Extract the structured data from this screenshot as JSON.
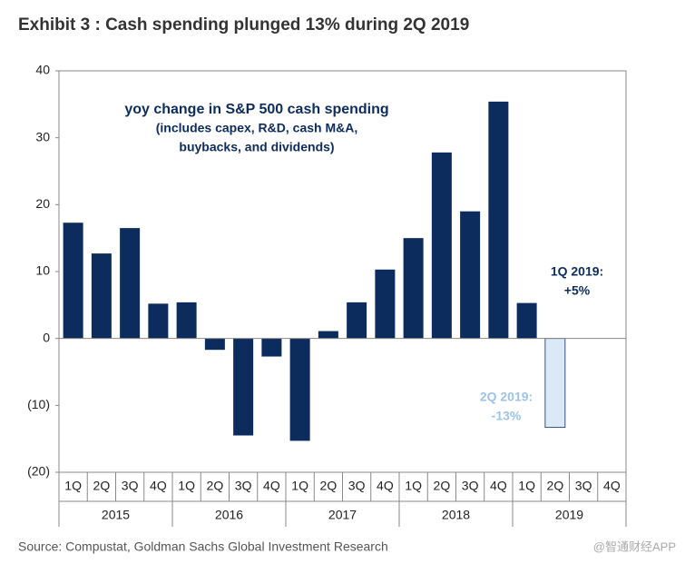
{
  "chart_data": {
    "type": "bar",
    "title": "Exhibit 3 : Cash spending plunged 13% during 2Q 2019",
    "annotation_lines": [
      "yoy change in S&P 500 cash spending",
      "(includes capex, R&D, cash M&A,",
      "buybacks, and dividends)"
    ],
    "callouts": [
      {
        "lines": [
          "1Q 2019:",
          "+5%"
        ],
        "color": "#0d2c5e"
      },
      {
        "lines": [
          "2Q 2019:",
          "-13%"
        ],
        "color": "#9dc3e6"
      }
    ],
    "categories": [
      "1Q",
      "2Q",
      "3Q",
      "4Q",
      "1Q",
      "2Q",
      "3Q",
      "4Q",
      "1Q",
      "2Q",
      "3Q",
      "4Q",
      "1Q",
      "2Q",
      "3Q",
      "4Q",
      "1Q",
      "2Q",
      "3Q",
      "4Q"
    ],
    "groups": [
      "2015",
      "2016",
      "2017",
      "2018",
      "2019"
    ],
    "values": [
      17.3,
      12.7,
      16.5,
      5.2,
      5.4,
      -1.7,
      -14.5,
      -2.7,
      -15.3,
      1.1,
      5.4,
      10.3,
      15.0,
      27.8,
      19.0,
      35.4,
      5.3,
      -13.3,
      null,
      null
    ],
    "colors": [
      "#0d2c5e",
      "#0d2c5e",
      "#0d2c5e",
      "#0d2c5e",
      "#0d2c5e",
      "#0d2c5e",
      "#0d2c5e",
      "#0d2c5e",
      "#0d2c5e",
      "#0d2c5e",
      "#0d2c5e",
      "#0d2c5e",
      "#0d2c5e",
      "#0d2c5e",
      "#0d2c5e",
      "#0d2c5e",
      "#0d2c5e",
      "#dbe9f6",
      "#0d2c5e",
      "#0d2c5e"
    ],
    "ylim": [
      -20,
      40
    ],
    "yticks": [
      {
        "value": -20,
        "label": "(20)"
      },
      {
        "value": -10,
        "label": "(10)"
      },
      0,
      10,
      20,
      30,
      40
    ],
    "source": "Source: Compustat, Goldman Sachs Global Investment Research",
    "watermark": "@智通财经APP"
  }
}
